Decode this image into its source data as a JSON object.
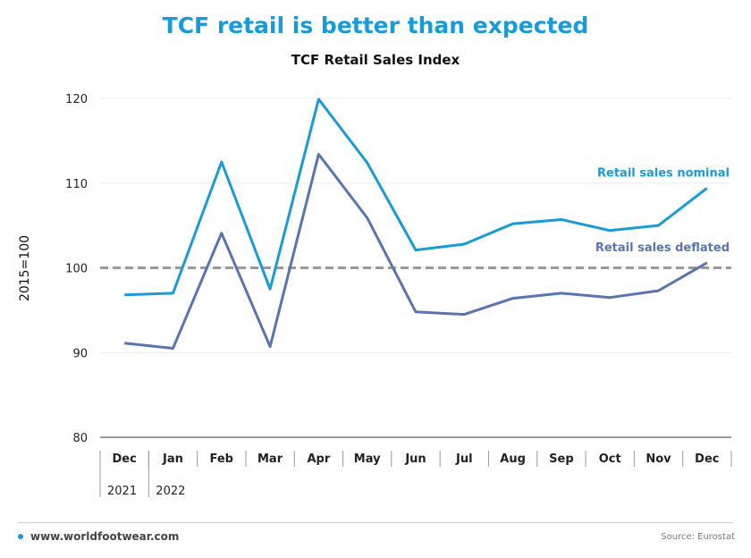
{
  "header": {
    "title": "TCF retail is better than expected"
  },
  "footer": {
    "website": "www.worldfootwear.com",
    "source": "Source: Eurostat"
  },
  "colors": {
    "accent": "#1a9ad6",
    "nominal": "#1a9ad6",
    "deflated": "#5b74b0",
    "reference": "#9a9a9a"
  },
  "chart_data": {
    "type": "line",
    "title": "TCF Retail Sales Index",
    "ylabel": "2015=100",
    "xlabel": "",
    "ylim": [
      80,
      120
    ],
    "yticks": [
      80,
      90,
      100,
      110,
      120
    ],
    "categories": [
      "Dec",
      "Jan",
      "Feb",
      "Mar",
      "Apr",
      "May",
      "Jun",
      "Jul",
      "Aug",
      "Sep",
      "Oct",
      "Nov",
      "Dec"
    ],
    "years": [
      {
        "label": "2021",
        "start_index": 0
      },
      {
        "label": "2022",
        "start_index": 1
      }
    ],
    "series": [
      {
        "name": "Retail sales nominal",
        "color": "#1a9ad6",
        "values": [
          96.8,
          97.0,
          112.5,
          97.5,
          119.9,
          112.4,
          102.1,
          102.8,
          105.2,
          105.7,
          104.4,
          105.0,
          109.4
        ]
      },
      {
        "name": "Retail sales deflated",
        "color": "#5b74b0",
        "values": [
          91.1,
          90.5,
          104.1,
          90.7,
          113.4,
          105.9,
          94.8,
          94.5,
          96.4,
          97.0,
          96.5,
          97.3,
          100.6
        ]
      }
    ],
    "reference_line": 100,
    "grid": true
  }
}
